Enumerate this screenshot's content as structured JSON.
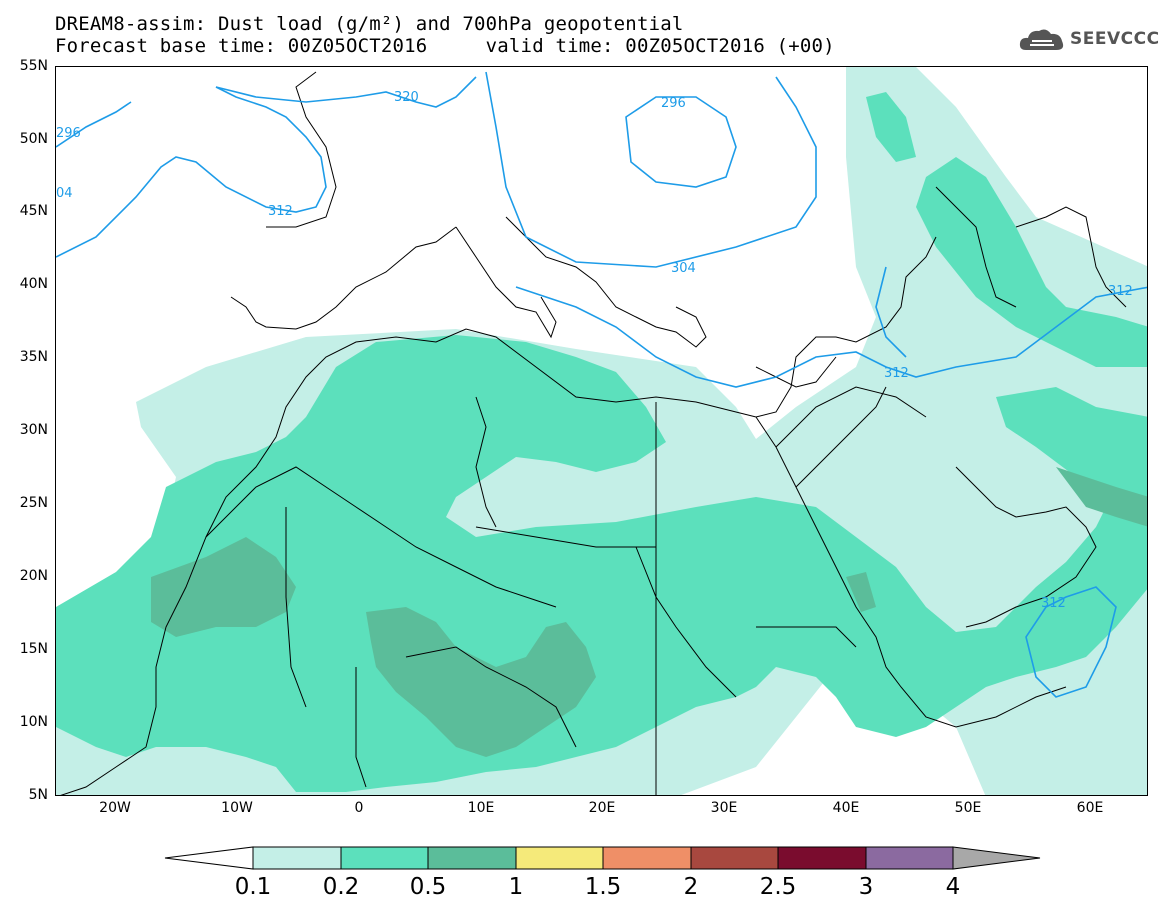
{
  "title": {
    "line1": "DREAM8-assim: Dust load (g/m²) and 700hPa geopotential",
    "line2": "Forecast base time: 00Z05OCT2016     valid time: 00Z05OCT2016 (+00)"
  },
  "logo": {
    "text": "SEEVCCC",
    "icon": "cloud-icon"
  },
  "axes": {
    "lat_labels": [
      "55N",
      "50N",
      "45N",
      "40N",
      "35N",
      "30N",
      "25N",
      "20N",
      "15N",
      "10N",
      "5N"
    ],
    "lon_labels": [
      "20W",
      "10W",
      "0",
      "10E",
      "20E",
      "30E",
      "40E",
      "50E",
      "60E"
    ]
  },
  "contour_labels": [
    "320",
    "296",
    "296",
    "04",
    "312",
    "304",
    "312",
    "312",
    "312"
  ],
  "colorbar": {
    "labels": [
      "0.1",
      "0.2",
      "0.5",
      "1",
      "1.5",
      "2",
      "2.5",
      "3",
      "4"
    ],
    "colors": [
      "#ffffff",
      "#c4efe7",
      "#5ce0bc",
      "#5bbd9a",
      "#f5ea7a",
      "#ef8f67",
      "#a8483f",
      "#7a0c2e",
      "#8b6aa0",
      "#a8a8a8"
    ]
  },
  "colors": {
    "dust_light": "#c4efe7",
    "dust_mid": "#5ce0bc",
    "dust_dark": "#5bbd9a",
    "contour": "#1e9ce8",
    "coast": "#000000"
  }
}
